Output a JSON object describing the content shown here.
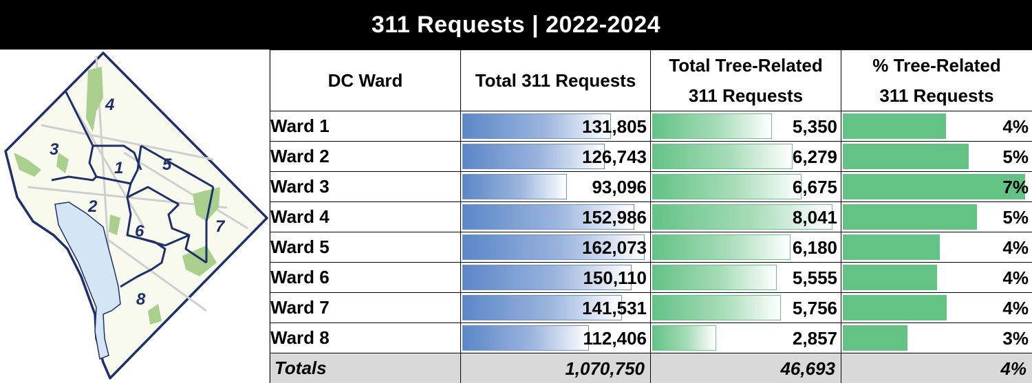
{
  "title": "311 Requests | 2022-2024",
  "map": {
    "labels": [
      "1",
      "2",
      "3",
      "4",
      "5",
      "6",
      "7",
      "8"
    ],
    "colors": {
      "border": "#1f2f6b",
      "land": "#f8faee",
      "park": "#a9cf8d",
      "water": "#d4e6f6",
      "road": "#c9c9c9"
    }
  },
  "headers": {
    "ward": "DC Ward",
    "total": "Total 311 Requests",
    "tree_line1": "Total Tree-Related",
    "tree_line2": "311 Requests",
    "pct_line1": "% Tree-Related",
    "pct_line2": "311 Requests"
  },
  "rows": [
    {
      "ward": "Ward 1",
      "total": "131,805",
      "total_value": 131805,
      "tree": "5,350",
      "tree_value": 5350,
      "pct": "4%",
      "pct_value": 4.06
    },
    {
      "ward": "Ward 2",
      "total": "126,743",
      "total_value": 126743,
      "tree": "6,279",
      "tree_value": 6279,
      "pct": "5%",
      "pct_value": 4.95
    },
    {
      "ward": "Ward 3",
      "total": "93,096",
      "total_value": 93096,
      "tree": "6,675",
      "tree_value": 6675,
      "pct": "7%",
      "pct_value": 7.17
    },
    {
      "ward": "Ward 4",
      "total": "152,986",
      "total_value": 152986,
      "tree": "8,041",
      "tree_value": 8041,
      "pct": "5%",
      "pct_value": 5.26
    },
    {
      "ward": "Ward 5",
      "total": "162,073",
      "total_value": 162073,
      "tree": "6,180",
      "tree_value": 6180,
      "pct": "4%",
      "pct_value": 3.81
    },
    {
      "ward": "Ward 6",
      "total": "150,110",
      "total_value": 150110,
      "tree": "5,555",
      "tree_value": 5555,
      "pct": "4%",
      "pct_value": 3.7
    },
    {
      "ward": "Ward 7",
      "total": "141,531",
      "total_value": 141531,
      "tree": "5,756",
      "tree_value": 5756,
      "pct": "4%",
      "pct_value": 4.07
    },
    {
      "ward": "Ward 8",
      "total": "112,406",
      "total_value": 112406,
      "tree": "2,857",
      "tree_value": 2857,
      "pct": "3%",
      "pct_value": 2.54
    }
  ],
  "totals": {
    "label": "Totals",
    "total": "1,070,750",
    "tree": "46,693",
    "pct": "4%"
  }
}
